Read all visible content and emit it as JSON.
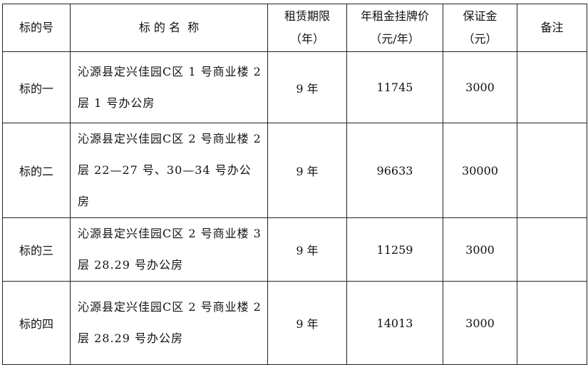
{
  "headers": {
    "id": "标的号",
    "name": "标 的 名  称",
    "term": [
      "租赁期限",
      "（年）"
    ],
    "price": [
      "年租金挂牌价",
      "（元/年）"
    ],
    "deposit": [
      "保证金",
      "（元）"
    ],
    "remark": "备注"
  },
  "rows": [
    {
      "id": "标的一",
      "name": "沁源县定兴佳园C区 1 号商业楼 2 层 1 号办公房",
      "term": "9 年",
      "price": "11745",
      "deposit": "3000",
      "remark": ""
    },
    {
      "id": "标的二",
      "name": "沁源县定兴佳园C区 2 号商业楼 2 层 22—27 号、30—34 号办公房",
      "term": "9 年",
      "price": "96633",
      "deposit": "30000",
      "remark": ""
    },
    {
      "id": "标的三",
      "name": "沁源县定兴佳园C区 2 号商业楼 3 层 28.29 号办公房",
      "term": "9 年",
      "price": "11259",
      "deposit": "3000",
      "remark": ""
    },
    {
      "id": "标的四",
      "name": "沁源县定兴佳园C区 2 号商业楼 2 层 28.29 号办公房",
      "term": "9 年",
      "price": "14013",
      "deposit": "3000",
      "remark": ""
    }
  ]
}
